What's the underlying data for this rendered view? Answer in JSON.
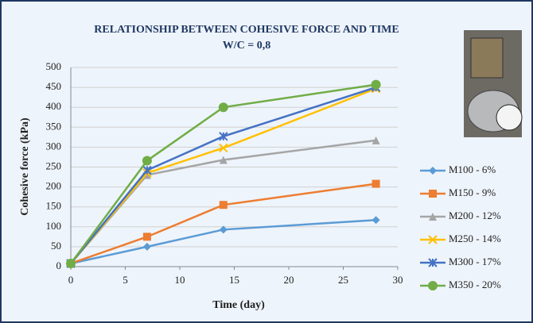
{
  "chart_data": {
    "type": "line",
    "title": "RELATIONSHIP BETWEEN COHESIVE FORCE AND TIME",
    "subtitle": "W/C = 0,8",
    "x_label": "Time (day)",
    "y_label": "Cohesive force (kPa)",
    "x": [
      0,
      7,
      14,
      28
    ],
    "series": [
      {
        "name": "M100 - 6%",
        "color": "#5b9bd5",
        "marker": "diamond",
        "values": [
          8,
          50,
          93,
          117
        ]
      },
      {
        "name": "M150 - 9%",
        "color": "#ed7d31",
        "marker": "square",
        "values": [
          8,
          75,
          155,
          208
        ]
      },
      {
        "name": "M200 - 12%",
        "color": "#a5a5a5",
        "marker": "triangle",
        "values": [
          8,
          230,
          268,
          317
        ]
      },
      {
        "name": "M250 - 14%",
        "color": "#ffc000",
        "marker": "x",
        "values": [
          8,
          235,
          298,
          447
        ]
      },
      {
        "name": "M300 - 17%",
        "color": "#4472c4",
        "marker": "star",
        "values": [
          8,
          242,
          327,
          450
        ]
      },
      {
        "name": "M350 - 20%",
        "color": "#70ad47",
        "marker": "circle",
        "values": [
          8,
          266,
          400,
          457
        ]
      }
    ],
    "xlim": [
      0,
      30
    ],
    "xticks": [
      0,
      5,
      10,
      15,
      20,
      25,
      30
    ],
    "ylim": [
      0,
      500
    ],
    "yticks": [
      0,
      50,
      100,
      150,
      200,
      250,
      300,
      350,
      400,
      450,
      500
    ],
    "grid": true,
    "legend": "right"
  }
}
